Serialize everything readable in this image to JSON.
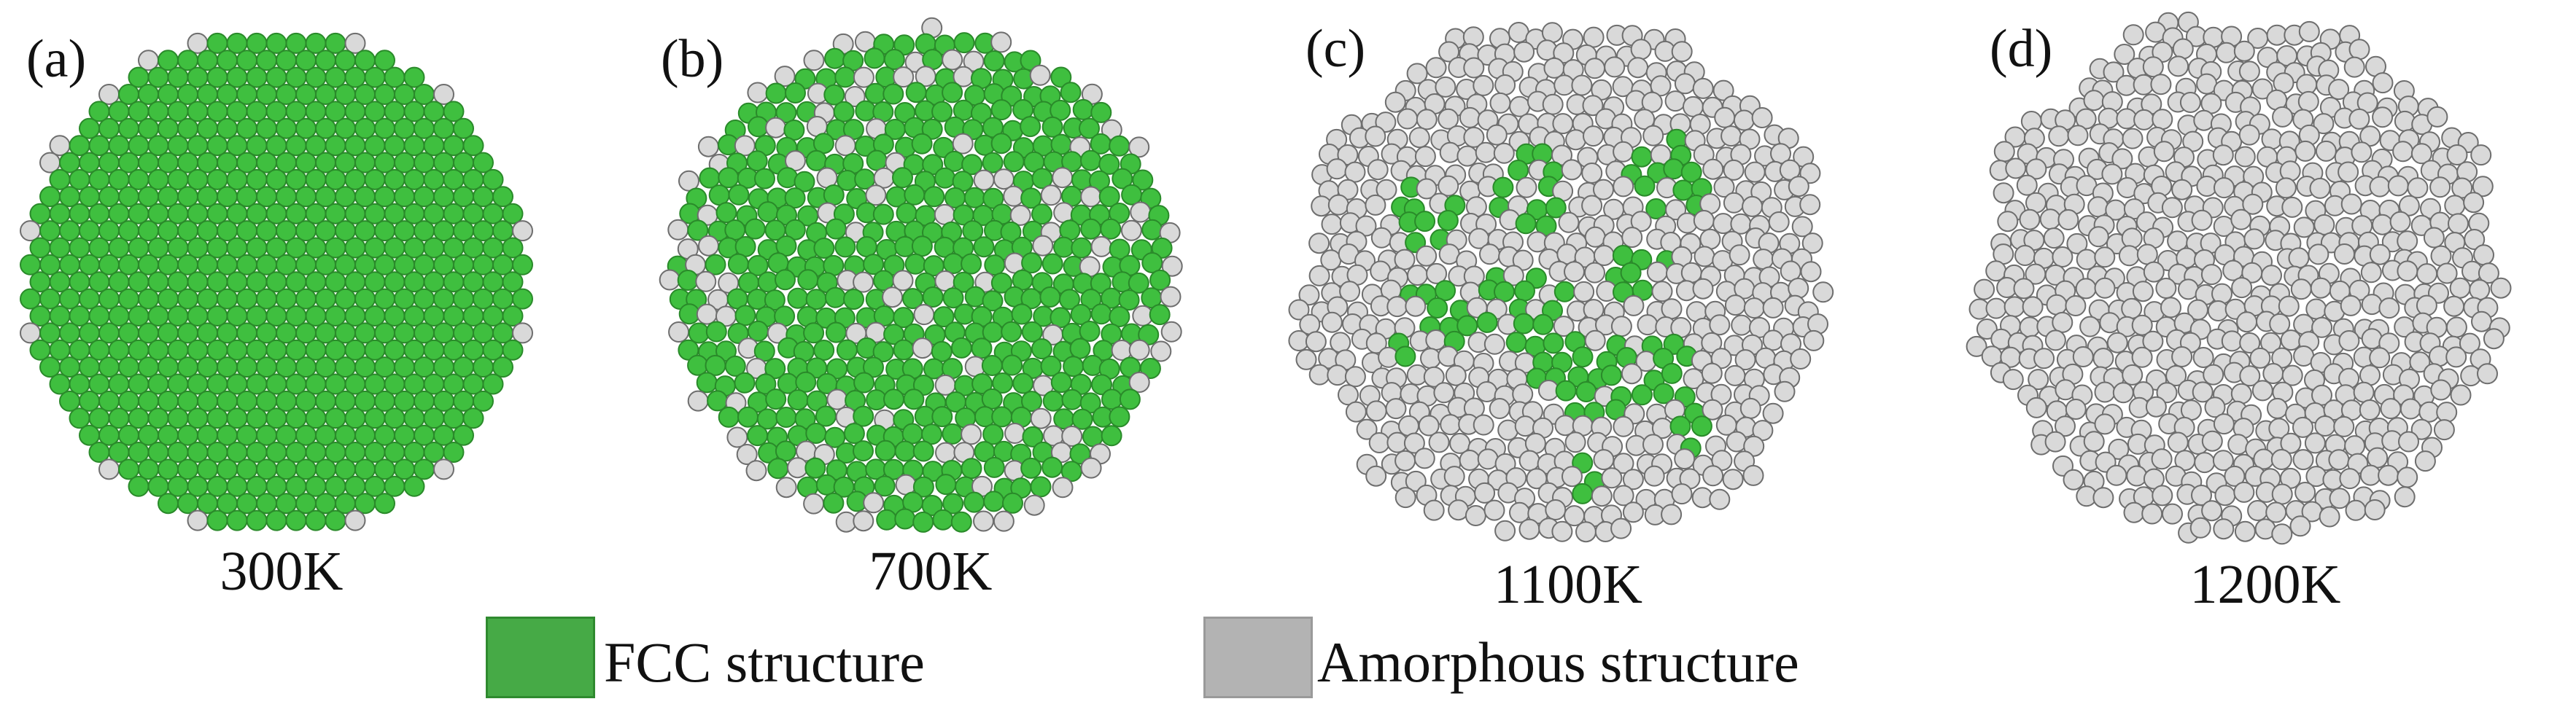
{
  "panels": [
    {
      "label": "(a)",
      "temperature": "300K",
      "fcc_fraction": 1.0
    },
    {
      "label": "(b)",
      "temperature": "700K",
      "fcc_fraction": 0.8
    },
    {
      "label": "(c)",
      "temperature": "1100K",
      "fcc_fraction": 0.2
    },
    {
      "label": "(d)",
      "temperature": "1200K",
      "fcc_fraction": 0.0
    }
  ],
  "legend": {
    "fcc_label": "FCC structure",
    "amorphous_label": "Amorphous structure"
  },
  "colors": {
    "fcc": "#3fbf3f",
    "fcc_swatch": "#46aa46",
    "amorphous": "#d9d9d9",
    "amorphous_swatch": "#b3b3b3",
    "atom_outline": "#6e6e6e"
  }
}
